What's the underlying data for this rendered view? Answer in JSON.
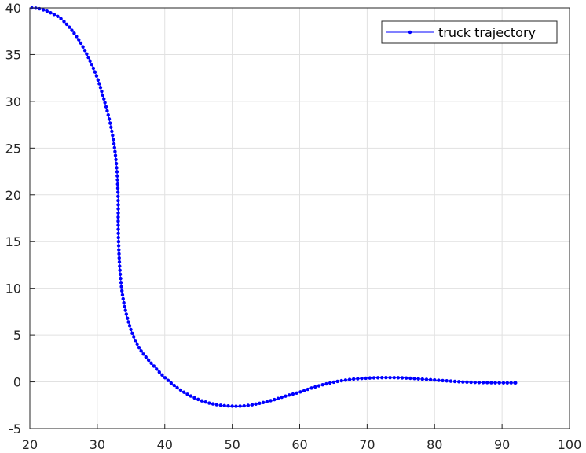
{
  "chart_data": {
    "type": "line",
    "title": "",
    "xlabel": "",
    "ylabel": "",
    "xlim": [
      20,
      100
    ],
    "ylim": [
      -5,
      40
    ],
    "xticks": [
      20,
      30,
      40,
      50,
      60,
      70,
      80,
      90,
      100
    ],
    "yticks": [
      -5,
      0,
      5,
      10,
      15,
      20,
      25,
      30,
      35,
      40
    ],
    "grid": true,
    "legend_position": "top-right",
    "series": [
      {
        "name": "truck trajectory",
        "color": "#0000ff",
        "marker": "dot",
        "points": [
          [
            20.3,
            40.0
          ],
          [
            21.5,
            39.9
          ],
          [
            23.0,
            39.5
          ],
          [
            24.5,
            38.9
          ],
          [
            26.0,
            37.8
          ],
          [
            27.5,
            36.3
          ],
          [
            28.8,
            34.5
          ],
          [
            30.0,
            32.5
          ],
          [
            31.0,
            30.2
          ],
          [
            31.8,
            28.0
          ],
          [
            32.4,
            25.8
          ],
          [
            32.8,
            23.5
          ],
          [
            33.0,
            21.5
          ],
          [
            33.1,
            19.0
          ],
          [
            33.1,
            16.5
          ],
          [
            33.2,
            14.0
          ],
          [
            33.4,
            11.5
          ],
          [
            33.8,
            9.0
          ],
          [
            34.5,
            6.7
          ],
          [
            35.4,
            4.8
          ],
          [
            36.5,
            3.3
          ],
          [
            38.0,
            2.0
          ],
          [
            39.8,
            0.6
          ],
          [
            41.8,
            -0.6
          ],
          [
            43.8,
            -1.5
          ],
          [
            45.8,
            -2.1
          ],
          [
            47.8,
            -2.45
          ],
          [
            50.0,
            -2.6
          ],
          [
            52.0,
            -2.55
          ],
          [
            54.0,
            -2.3
          ],
          [
            56.0,
            -1.95
          ],
          [
            58.0,
            -1.5
          ],
          [
            60.0,
            -1.1
          ],
          [
            62.0,
            -0.6
          ],
          [
            64.0,
            -0.2
          ],
          [
            66.0,
            0.1
          ],
          [
            68.0,
            0.3
          ],
          [
            70.0,
            0.4
          ],
          [
            72.0,
            0.45
          ],
          [
            74.0,
            0.45
          ],
          [
            76.0,
            0.4
          ],
          [
            78.0,
            0.3
          ],
          [
            80.0,
            0.2
          ],
          [
            82.0,
            0.1
          ],
          [
            84.0,
            0.0
          ],
          [
            86.0,
            -0.05
          ],
          [
            88.0,
            -0.08
          ],
          [
            90.0,
            -0.1
          ],
          [
            92.0,
            -0.1
          ]
        ]
      }
    ]
  }
}
